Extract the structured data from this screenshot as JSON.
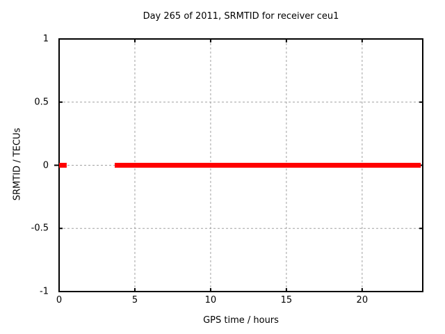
{
  "chart_data": {
    "type": "line",
    "title": "Day 265 of 2011, SRMTID for receiver ceu1",
    "xlabel": "GPS time / hours",
    "ylabel": "SRMTID / TECUs",
    "xlim": [
      0,
      24
    ],
    "ylim": [
      -1,
      1
    ],
    "xtick_values": [
      0,
      5,
      10,
      15,
      20
    ],
    "xtick_labels": [
      "0",
      "5",
      "10",
      "15",
      "20"
    ],
    "ytick_values": [
      1,
      0.5,
      0,
      -0.5,
      -1
    ],
    "ytick_labels": [
      "1",
      "0.5",
      "0",
      "-0.5",
      "-1"
    ],
    "grid": true,
    "legend": "none",
    "series": [
      {
        "name": "SRMTID",
        "color": "#ff0000",
        "y_value": 0,
        "x_segments_hours": [
          [
            0,
            0.5
          ],
          [
            3.67,
            23.87
          ]
        ]
      }
    ]
  },
  "colors": {
    "background": "#ffffff",
    "border": "#000000",
    "grid": "#a0a0a0",
    "line": "#ff0000",
    "text": "#000000"
  }
}
